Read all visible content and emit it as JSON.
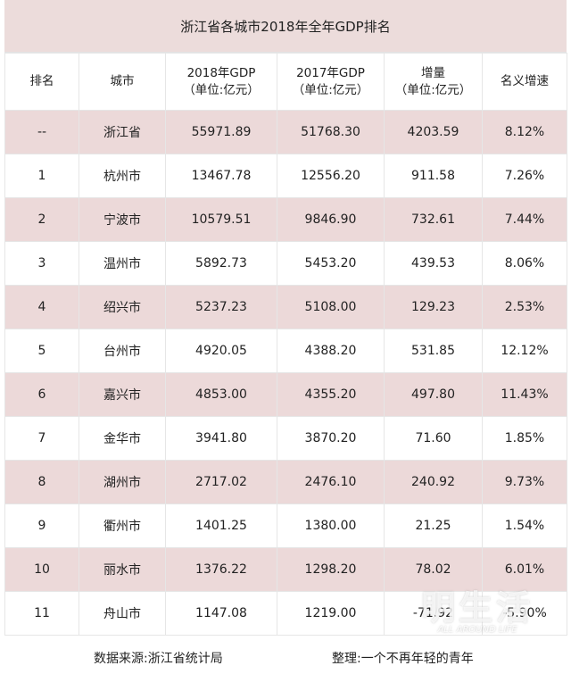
{
  "title": "浙江省各城市2018年全年GDP排名",
  "header": [
    [
      "排名"
    ],
    [
      "城市"
    ],
    [
      "2018年GDP",
      "（单位:亿元）"
    ],
    [
      "2017年GDP",
      "（单位:亿元）"
    ],
    [
      "增量",
      "（单位:亿元）"
    ],
    [
      "名义增速"
    ]
  ],
  "rows": [
    [
      "--",
      "浙江省",
      "55971.89",
      "51768.30",
      "4203.59",
      "8.12%"
    ],
    [
      "1",
      "杭州市",
      "13467.78",
      "12556.20",
      "911.58",
      "7.26%"
    ],
    [
      "2",
      "宁波市",
      "10579.51",
      "9846.90",
      "732.61",
      "7.44%"
    ],
    [
      "3",
      "温州市",
      "5892.73",
      "5453.20",
      "439.53",
      "8.06%"
    ],
    [
      "4",
      "绍兴市",
      "5237.23",
      "5108.00",
      "129.23",
      "2.53%"
    ],
    [
      "5",
      "台州市",
      "4920.05",
      "4388.20",
      "531.85",
      "12.12%"
    ],
    [
      "6",
      "嘉兴市",
      "4853.00",
      "4355.20",
      "497.80",
      "11.43%"
    ],
    [
      "7",
      "金华市",
      "3941.80",
      "3870.20",
      "71.60",
      "1.85%"
    ],
    [
      "8",
      "湖州市",
      "2717.02",
      "2476.10",
      "240.92",
      "9.73%"
    ],
    [
      "9",
      "衢州市",
      "1401.25",
      "1380.00",
      "21.25",
      "1.54%"
    ],
    [
      "10",
      "丽水市",
      "1376.22",
      "1298.20",
      "78.02",
      "6.01%"
    ],
    [
      "11",
      "舟山市",
      "1147.08",
      "1219.00",
      "-71.92",
      "-5.90%"
    ]
  ],
  "footer": {
    "source": "数据来源:浙江省统计局",
    "editor": "整理:一个不再年轻的青年"
  },
  "watermark": {
    "main": "明生活",
    "sub": "ALL AROUND LIFE"
  }
}
